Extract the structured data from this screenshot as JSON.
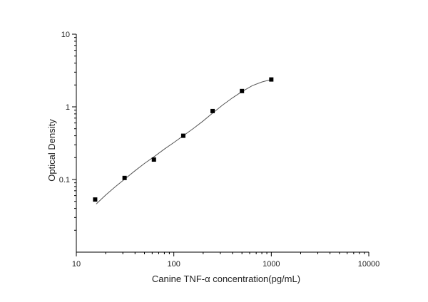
{
  "chart_data": {
    "type": "scatter",
    "title": "",
    "xlabel": "Canine TNF-α  concentration(pg/mL)",
    "ylabel": "Optical Density",
    "xscale": "log",
    "yscale": "log",
    "xlim": [
      10,
      10000
    ],
    "ylim": [
      0.01,
      10
    ],
    "x_ticks": [
      "10",
      "100",
      "1000",
      "10000"
    ],
    "y_ticks": [
      "0.1",
      "1",
      "10"
    ],
    "grid": false,
    "legend": "none",
    "marker": "square",
    "colors": {
      "points": "#000000",
      "curve": "#555555",
      "axes": "#000000"
    },
    "series": [
      {
        "x": [
          15.6,
          31.25,
          62.5,
          125,
          250,
          500,
          1000
        ],
        "y": [
          0.053,
          0.105,
          0.188,
          0.4,
          0.875,
          1.65,
          2.38
        ]
      }
    ],
    "fit_curve": {
      "x": [
        16,
        20,
        25,
        31.25,
        40,
        50,
        62.5,
        80,
        100,
        125,
        160,
        200,
        250,
        320,
        400,
        500,
        640,
        800,
        1000
      ],
      "y": [
        0.046,
        0.061,
        0.079,
        0.101,
        0.132,
        0.166,
        0.205,
        0.262,
        0.323,
        0.4,
        0.508,
        0.64,
        0.82,
        1.07,
        1.33,
        1.62,
        1.96,
        2.2,
        2.38
      ]
    }
  }
}
